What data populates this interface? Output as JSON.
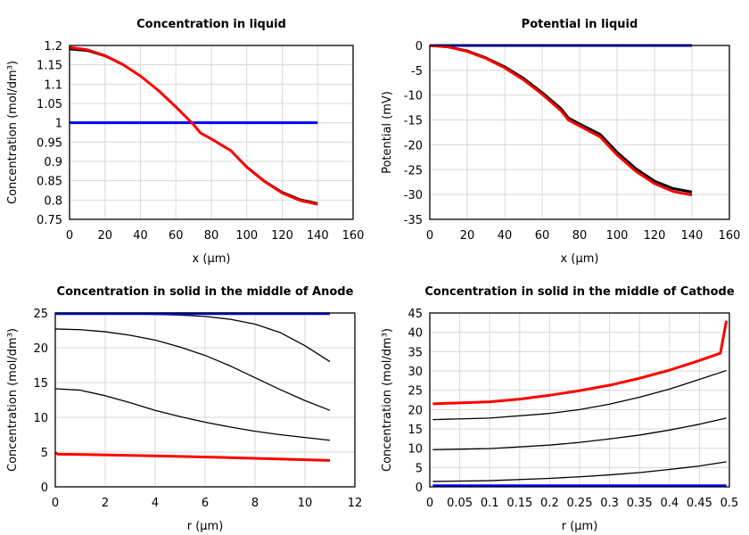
{
  "chart_data": [
    {
      "type": "line",
      "title": "Concentration in liquid",
      "xlabel": "x (µm)",
      "ylabel": "Concentration (mol/dm³)",
      "xlim": [
        0,
        160
      ],
      "ylim": [
        0.75,
        1.2
      ],
      "xticks": [
        0,
        20,
        40,
        60,
        80,
        100,
        120,
        140,
        160
      ],
      "yticks": [
        0.75,
        0.8,
        0.85,
        0.9,
        0.95,
        1,
        1.05,
        1.1,
        1.15,
        1.2
      ],
      "ytick_labels": [
        "0.75",
        "0.8",
        "0.85",
        "0.9",
        "0.95",
        "1",
        "1.05",
        "1.1",
        "1.15",
        "1.2"
      ],
      "grid": true,
      "series": [
        {
          "color": "#0000ff",
          "width": 3,
          "x": [
            0,
            140
          ],
          "y": [
            1,
            1
          ]
        },
        {
          "color": "#000000",
          "width": 2,
          "x": [
            0,
            10,
            20,
            30,
            40,
            50,
            60,
            70,
            74,
            80,
            91,
            100,
            110,
            120,
            130,
            140
          ],
          "y": [
            1.19,
            1.186,
            1.172,
            1.15,
            1.121,
            1.084,
            1.042,
            0.996,
            0.974,
            0.959,
            0.929,
            0.887,
            0.85,
            0.821,
            0.802,
            0.792
          ]
        },
        {
          "color": "#ff0000",
          "width": 3,
          "x": [
            0,
            10,
            20,
            30,
            40,
            50,
            60,
            70,
            74,
            80,
            91,
            100,
            110,
            120,
            130,
            140
          ],
          "y": [
            1.195,
            1.189,
            1.174,
            1.151,
            1.121,
            1.084,
            1.041,
            0.995,
            0.973,
            0.958,
            0.928,
            0.885,
            0.848,
            0.818,
            0.799,
            0.789
          ]
        }
      ]
    },
    {
      "type": "line",
      "title": "Potential in liquid",
      "xlabel": "x (µm)",
      "ylabel": "Potential (mV)",
      "xlim": [
        0,
        160
      ],
      "ylim": [
        -35,
        0
      ],
      "xticks": [
        0,
        20,
        40,
        60,
        80,
        100,
        120,
        140,
        160
      ],
      "yticks": [
        -35,
        -30,
        -25,
        -20,
        -15,
        -10,
        -5,
        0
      ],
      "ytick_labels": [
        "-35",
        "-30",
        "-25",
        "-20",
        "-15",
        "-10",
        "-5",
        "0"
      ],
      "grid": true,
      "series": [
        {
          "color": "#0000ff",
          "width": 3,
          "x": [
            0,
            140
          ],
          "y": [
            0,
            0
          ]
        },
        {
          "color": "#000000",
          "width": 3,
          "x": [
            0,
            10,
            20,
            30,
            40,
            50,
            60,
            70,
            74,
            80,
            91,
            100,
            110,
            120,
            130,
            140
          ],
          "y": [
            0,
            -0.3,
            -1.1,
            -2.5,
            -4.3,
            -6.6,
            -9.5,
            -12.7,
            -14.6,
            -15.8,
            -17.9,
            -21.5,
            -24.8,
            -27.3,
            -28.8,
            -29.5
          ]
        },
        {
          "color": "#ff0000",
          "width": 3,
          "x": [
            0,
            10,
            20,
            30,
            40,
            50,
            60,
            70,
            74,
            80,
            91,
            100,
            110,
            120,
            130,
            140
          ],
          "y": [
            0,
            -0.3,
            -1.2,
            -2.6,
            -4.5,
            -6.9,
            -9.8,
            -13.1,
            -15,
            -16.2,
            -18.4,
            -22,
            -25.3,
            -27.8,
            -29.4,
            -30.1
          ]
        }
      ]
    },
    {
      "type": "line",
      "title": "Concentration in solid in the middle of Anode",
      "xlabel": "r (µm)",
      "ylabel": "Concentration (mol/dm³)",
      "xlim": [
        0,
        12
      ],
      "ylim": [
        0,
        25
      ],
      "xticks": [
        0,
        2,
        4,
        6,
        8,
        10,
        12
      ],
      "yticks": [
        0,
        5,
        10,
        15,
        20,
        25
      ],
      "ytick_labels": [
        "0",
        "5",
        "10",
        "15",
        "20",
        "25"
      ],
      "grid": true,
      "series": [
        {
          "color": "#000000",
          "width": 1.3,
          "x": [
            0,
            2,
            4,
            5,
            6,
            7,
            8,
            9,
            10,
            11
          ],
          "y": [
            24.9,
            24.9,
            24.8,
            24.7,
            24.5,
            24.1,
            23.4,
            22.2,
            20.3,
            18
          ]
        },
        {
          "color": "#000000",
          "width": 1.3,
          "x": [
            0,
            1,
            2,
            3,
            4,
            5,
            6,
            7,
            8,
            9,
            10,
            11
          ],
          "y": [
            22.7,
            22.6,
            22.3,
            21.8,
            21.1,
            20.1,
            18.9,
            17.4,
            15.7,
            14,
            12.4,
            11
          ]
        },
        {
          "color": "#000000",
          "width": 1.3,
          "x": [
            0,
            1,
            2,
            3,
            4,
            5,
            6,
            7,
            8,
            9,
            10,
            11
          ],
          "y": [
            14.1,
            13.9,
            13.1,
            12.1,
            11,
            10.1,
            9.3,
            8.6,
            8,
            7.5,
            7.1,
            6.7
          ]
        },
        {
          "color": "#0000ff",
          "width": 3,
          "x": [
            0,
            11
          ],
          "y": [
            24.9,
            24.9
          ]
        },
        {
          "color": "#ff0000",
          "width": 3,
          "x": [
            0,
            0.1,
            1.2,
            4,
            7,
            11
          ],
          "y": [
            4.9,
            4.7,
            4.65,
            4.45,
            4.2,
            3.8
          ]
        }
      ]
    },
    {
      "type": "line",
      "title": "Concentration in solid in the middle of Cathode",
      "xlabel": "r (µm)",
      "ylabel": "Concentration (mol/dm³)",
      "xlim": [
        0,
        0.5
      ],
      "ylim": [
        0,
        45
      ],
      "xticks": [
        0,
        0.05,
        0.1,
        0.15,
        0.2,
        0.25,
        0.3,
        0.35,
        0.4,
        0.45,
        0.5
      ],
      "yticks": [
        0,
        5,
        10,
        15,
        20,
        25,
        30,
        35,
        40,
        45
      ],
      "ytick_labels": [
        "0",
        "5",
        "10",
        "15",
        "20",
        "25",
        "30",
        "35",
        "40",
        "45"
      ],
      "grid": true,
      "series": [
        {
          "color": "#000000",
          "width": 1.3,
          "x": [
            0.005,
            0.1,
            0.2,
            0.25,
            0.3,
            0.35,
            0.4,
            0.45,
            0.495
          ],
          "y": [
            17.4,
            17.8,
            19,
            20,
            21.4,
            23.2,
            25.3,
            27.8,
            30.1
          ]
        },
        {
          "color": "#000000",
          "width": 1.3,
          "x": [
            0.005,
            0.1,
            0.2,
            0.25,
            0.3,
            0.35,
            0.4,
            0.45,
            0.495
          ],
          "y": [
            9.6,
            9.9,
            10.8,
            11.5,
            12.4,
            13.4,
            14.7,
            16.2,
            17.8
          ]
        },
        {
          "color": "#000000",
          "width": 1.3,
          "x": [
            0.005,
            0.1,
            0.2,
            0.25,
            0.3,
            0.35,
            0.4,
            0.45,
            0.495
          ],
          "y": [
            1.4,
            1.6,
            2.2,
            2.6,
            3.1,
            3.7,
            4.5,
            5.4,
            6.5
          ]
        },
        {
          "color": "#0000ff",
          "width": 3,
          "x": [
            0.005,
            0.495
          ],
          "y": [
            0.3,
            0.3
          ]
        },
        {
          "color": "#ff0000",
          "width": 3,
          "x": [
            0.005,
            0.1,
            0.15,
            0.2,
            0.25,
            0.3,
            0.35,
            0.4,
            0.45,
            0.485,
            0.495
          ],
          "y": [
            21.5,
            22,
            22.7,
            23.7,
            24.9,
            26.3,
            28.1,
            30.2,
            32.7,
            34.6,
            43
          ]
        }
      ]
    }
  ]
}
